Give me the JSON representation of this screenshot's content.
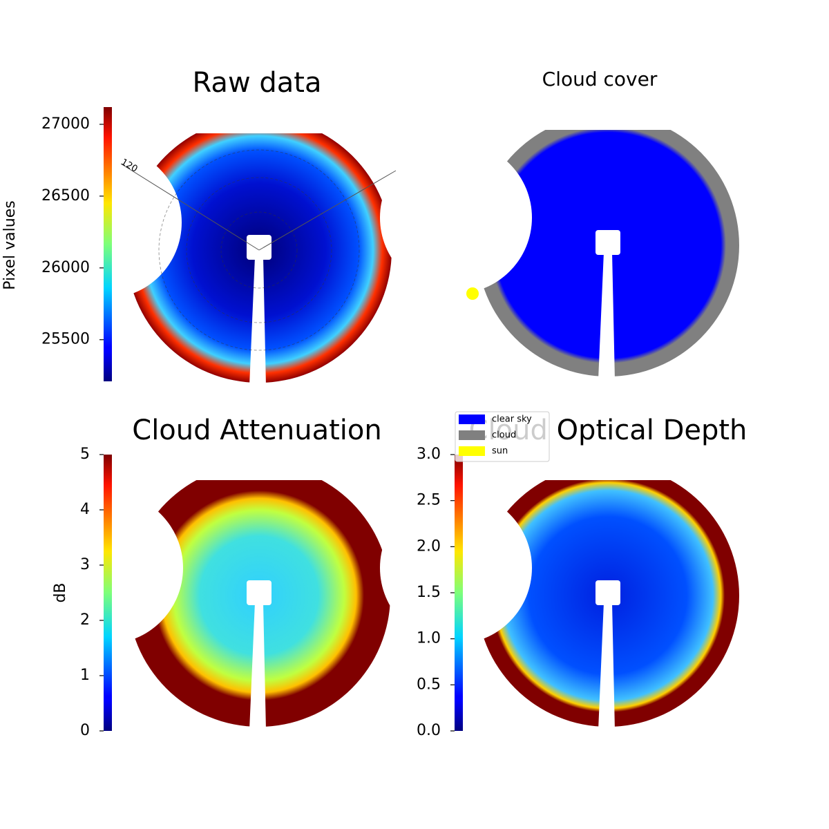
{
  "chart_data": [
    {
      "type": "image",
      "title": "Raw data",
      "colormap": "jet",
      "colorbar": {
        "label": "Pixel values",
        "lim": [
          25210,
          27120
        ],
        "ticks": [
          25500,
          26000,
          26500,
          27000
        ]
      },
      "polar_labels": [
        "120"
      ]
    },
    {
      "type": "image",
      "title": "Cloud cover",
      "legend": [
        {
          "label": "clear sky",
          "color": "#0000ff"
        },
        {
          "label": "cloud",
          "color": "#808080"
        },
        {
          "label": "sun",
          "color": "#ffff00"
        }
      ]
    },
    {
      "type": "image",
      "title": "Cloud Attenuation",
      "colormap": "jet",
      "colorbar": {
        "label": "dB",
        "lim": [
          0,
          5
        ],
        "ticks": [
          0,
          1,
          2,
          3,
          4,
          5
        ]
      }
    },
    {
      "type": "image",
      "title": "Cloud Optical Depth",
      "colormap": "jet",
      "colorbar": {
        "lim": [
          0,
          3
        ],
        "ticks": [
          {
            "value": 0,
            "label": "0.0"
          },
          0.5,
          {
            "value": 1,
            "label": "1.0"
          },
          1.5,
          {
            "value": 2,
            "label": "2.0"
          },
          2.5,
          {
            "value": 3,
            "label": "3.0"
          }
        ]
      }
    }
  ]
}
